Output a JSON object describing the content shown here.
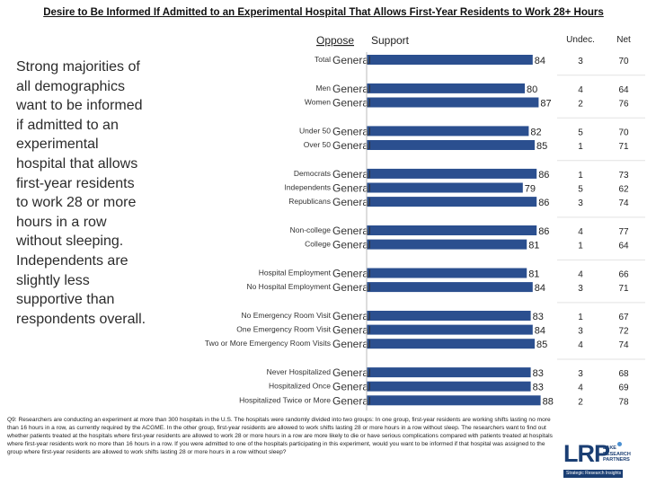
{
  "title": "Desire to Be Informed If Admitted to an Experimental Hospital That Allows First-Year Residents to Work 28+ Hours",
  "sidebar_text": "Strong majorities of all demographics want to be informed if admitted to an experimental hospital that allows first-year residents to work 28 or more hours in a row without sleeping. Independents are slightly less supportive than respondents overall.",
  "headers": {
    "oppose": "Oppose",
    "support": "Support",
    "undec": "Undec.",
    "net": "Net"
  },
  "footnote": "Q9: Researchers are conducting an experiment at more than 300 hospitals in the U.S. The hospitals were randomly divided into two groups: In one group, first-year residents are working shifts lasting no more than 16 hours in a row, as currently required by the ACGME. In the other group, first-year residents are allowed to work shifts lasting 28 or more hours in a row without sleep. The researchers want to find out whether patients treated at the hospitals where first-year residents are allowed to work 28 or more hours in a row are more likely to die or have serious complications compared with patients treated at hospitals where first-year residents work no more than 16 hours in a row. If you were admitted to one of the hospitals participating in this experiment, would you want to be informed if that hospital was assigned to the group where first-year residents are allowed to work shifts lasting 28 or more hours in a row without sleep?",
  "logo": {
    "letters": "LRP",
    "tagline": "LAKE RESEARCH PARTNERS",
    "bar_text": "Strategic Research Insights"
  },
  "colors": {
    "support": "#2b4f8f",
    "oppose": "#c0392b",
    "axis": "#bbbbbb"
  },
  "chart_data": {
    "type": "bar",
    "orientation": "horizontal",
    "title": "Desire to Be Informed If Admitted to an Experimental Hospital That Allows First-Year Residents to Work 28+ Hours",
    "xlim": [
      0,
      100
    ],
    "series_names": [
      "Oppose",
      "Support",
      "Undec.",
      "Net"
    ],
    "rows": [
      {
        "label": "Total",
        "sub": "General",
        "support": 84,
        "undec": 3,
        "net": 70,
        "gap_after": true
      },
      {
        "label": "Men",
        "sub": "General",
        "support": 80,
        "undec": 4,
        "net": 64
      },
      {
        "label": "Women",
        "sub": "General",
        "support": 87,
        "undec": 2,
        "net": 76,
        "gap_after": true
      },
      {
        "label": "Under 50",
        "sub": "General",
        "support": 82,
        "undec": 5,
        "net": 70
      },
      {
        "label": "Over 50",
        "sub": "General",
        "support": 85,
        "undec": 1,
        "net": 71,
        "gap_after": true
      },
      {
        "label": "Democrats",
        "sub": "General",
        "support": 86,
        "undec": 1,
        "net": 73
      },
      {
        "label": "Independents",
        "sub": "General",
        "support": 79,
        "undec": 5,
        "net": 62
      },
      {
        "label": "Republicans",
        "sub": "General",
        "support": 86,
        "undec": 3,
        "net": 74,
        "gap_after": true
      },
      {
        "label": "Non-college",
        "sub": "General",
        "support": 86,
        "undec": 4,
        "net": 77
      },
      {
        "label": "College",
        "sub": "General",
        "support": 81,
        "undec": 1,
        "net": 64,
        "gap_after": true
      },
      {
        "label": "Hospital Employment",
        "sub": "General",
        "support": 81,
        "undec": 4,
        "net": 66
      },
      {
        "label": "No Hospital Employment",
        "sub": "General",
        "support": 84,
        "undec": 3,
        "net": 71,
        "gap_after": true
      },
      {
        "label": "No Emergency Room Visit",
        "sub": "General",
        "support": 83,
        "undec": 1,
        "net": 67
      },
      {
        "label": "One Emergency Room Visit",
        "sub": "General",
        "support": 84,
        "undec": 3,
        "net": 72
      },
      {
        "label": "Two or More Emergency Room Visits",
        "sub": "General",
        "support": 85,
        "undec": 4,
        "net": 74,
        "gap_after": true
      },
      {
        "label": "Never Hospitalized",
        "sub": "General",
        "support": 83,
        "undec": 3,
        "net": 68
      },
      {
        "label": "Hospitalized Once",
        "sub": "General",
        "support": 83,
        "undec": 4,
        "net": 69
      },
      {
        "label": "Hospitalized Twice or More",
        "sub": "General",
        "support": 88,
        "undec": 2,
        "net": 78
      }
    ]
  }
}
